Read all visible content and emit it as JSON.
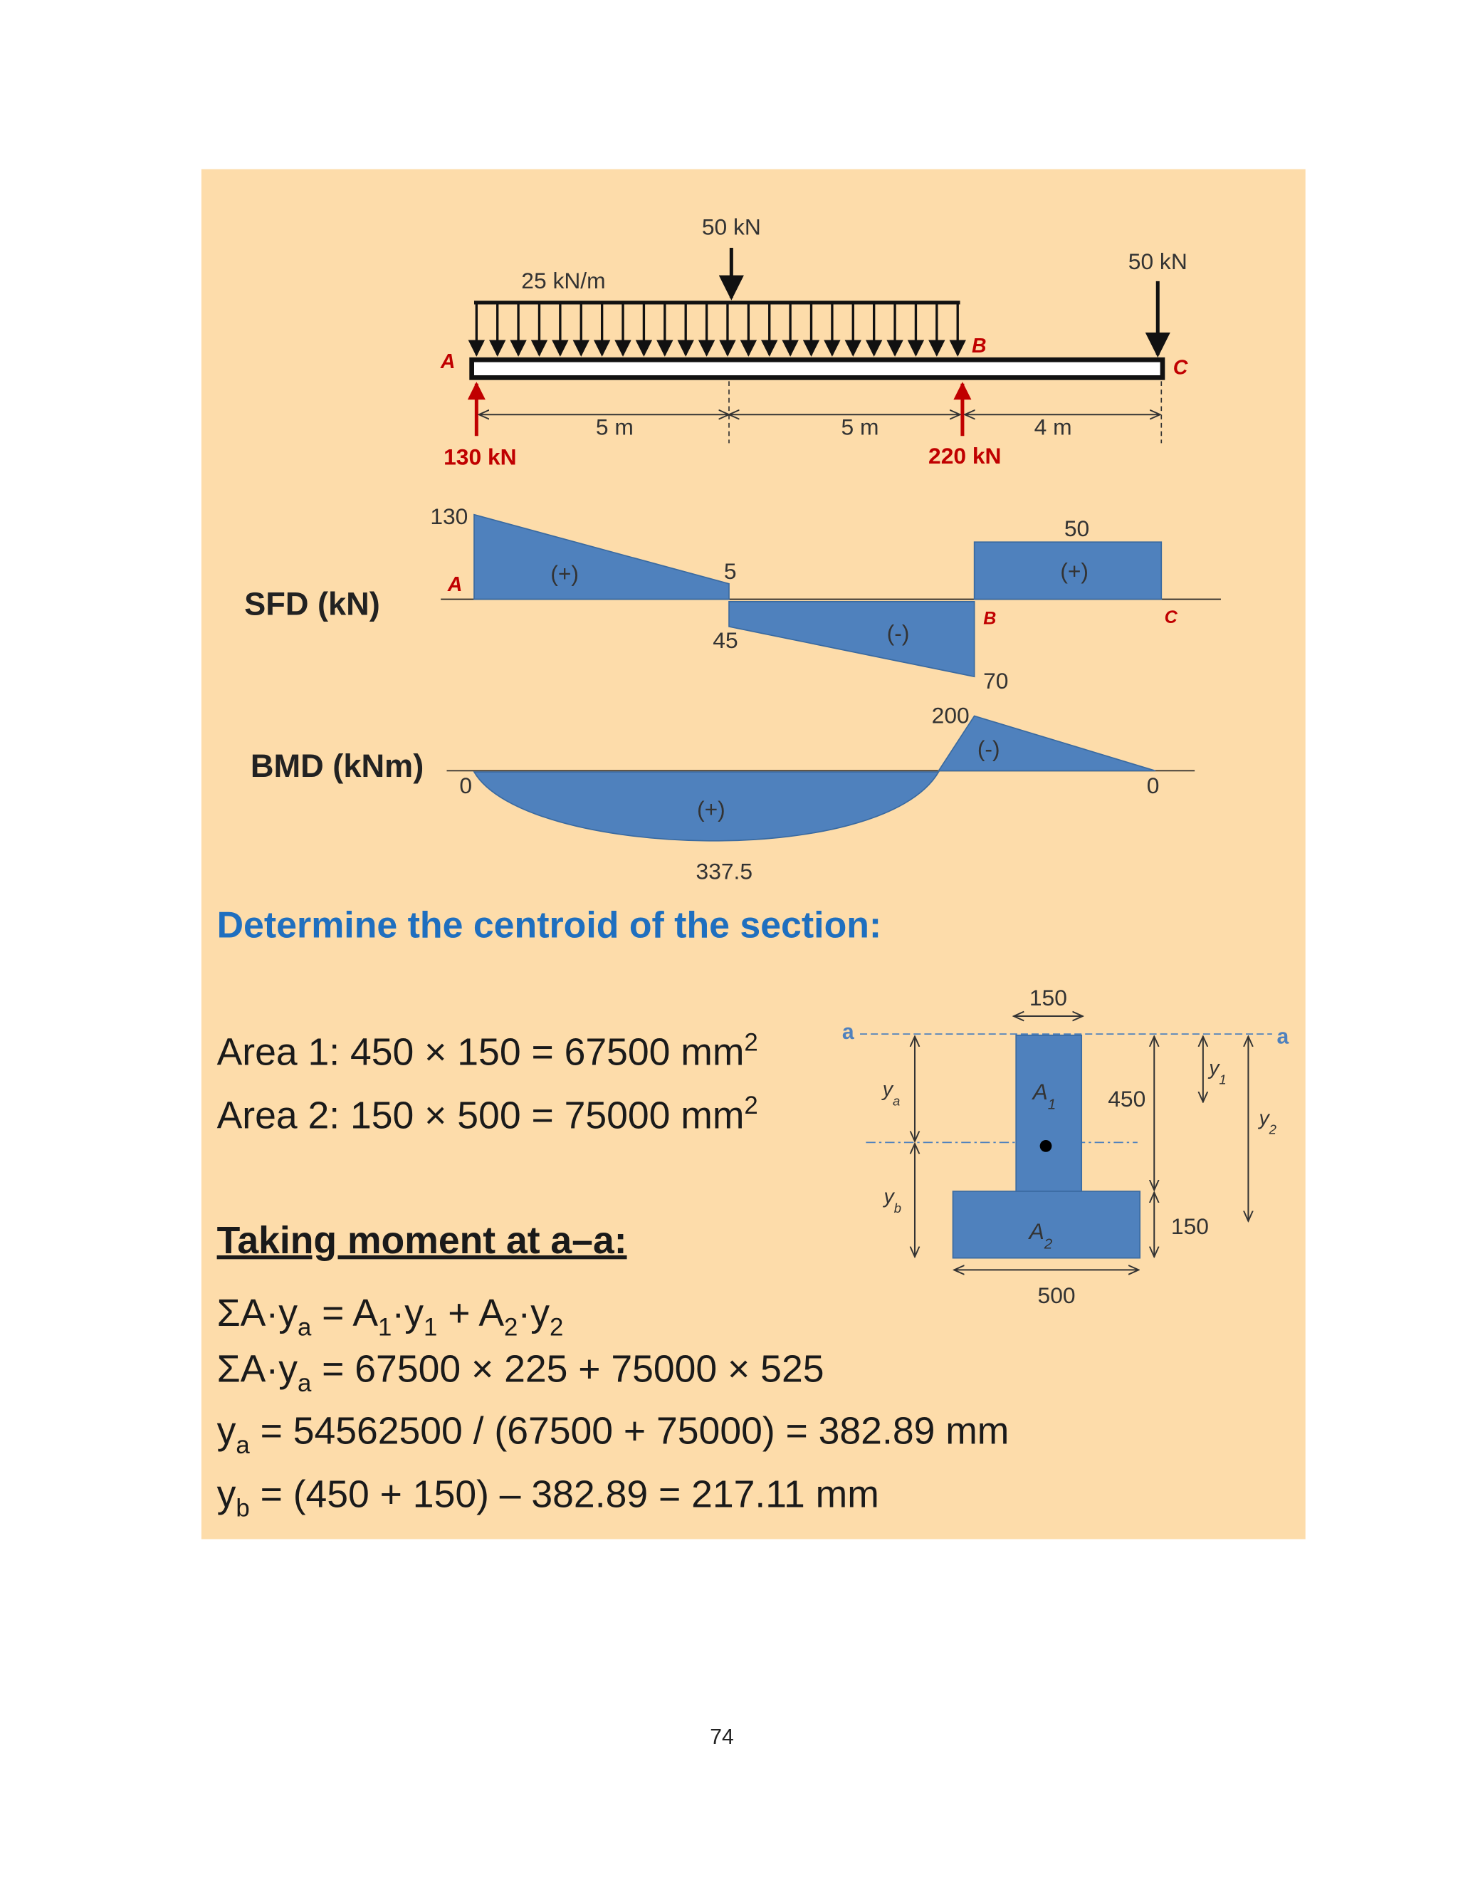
{
  "beam": {
    "load_mid": "50 kN",
    "udl": "25 kN/m",
    "load_end": "50 kN",
    "points": [
      "A",
      "B",
      "C"
    ],
    "spans": [
      "5 m",
      "5 m",
      "4 m"
    ],
    "reactions": [
      "130 kN",
      "220 kN"
    ]
  },
  "sfd": {
    "title": "SFD (kN)",
    "values": [
      "130",
      "5",
      "45",
      "70",
      "50"
    ],
    "signs": [
      "(+)",
      "(-)",
      "(+)"
    ],
    "points": [
      "A",
      "B",
      "C"
    ]
  },
  "bmd": {
    "title": "BMD (kNm)",
    "values": [
      "0",
      "337.5",
      "200",
      "0"
    ],
    "signs": [
      "(+)",
      "(-)"
    ]
  },
  "heading": "Determine the centroid of the section:",
  "areas": [
    [
      "Area 1: 450 × 150 = 67500 mm",
      "2"
    ],
    [
      "Area 2: 150 × 500 = 75000 mm",
      "2"
    ]
  ],
  "section": {
    "axis": [
      "a",
      "a"
    ],
    "top_width": "150",
    "top_height": "450",
    "bottom_height": "150",
    "bottom_width": "500",
    "a1": [
      "A",
      "1"
    ],
    "a2": [
      "A",
      "2"
    ],
    "ya": [
      "y",
      "a"
    ],
    "yb": [
      "y",
      "b"
    ],
    "y1": [
      "y",
      "1"
    ],
    "y2": [
      "y",
      "2"
    ]
  },
  "moment": {
    "title": "Taking moment at a–a:",
    "lines": [
      [
        "ΣA·y",
        "a",
        " = A",
        "1",
        "·y",
        "1",
        " + A",
        "2",
        "·y",
        "2"
      ],
      [
        "ΣA·y",
        "a",
        " = 67500 × 225 + 75000 × 525"
      ],
      [
        "y",
        "a",
        " = 54562500 / (67500 + 75000) = 382.89 mm"
      ],
      [
        "y",
        "b",
        " = (450 + 150) – 382.89 = 217.11 mm"
      ]
    ]
  },
  "page_number": "74"
}
